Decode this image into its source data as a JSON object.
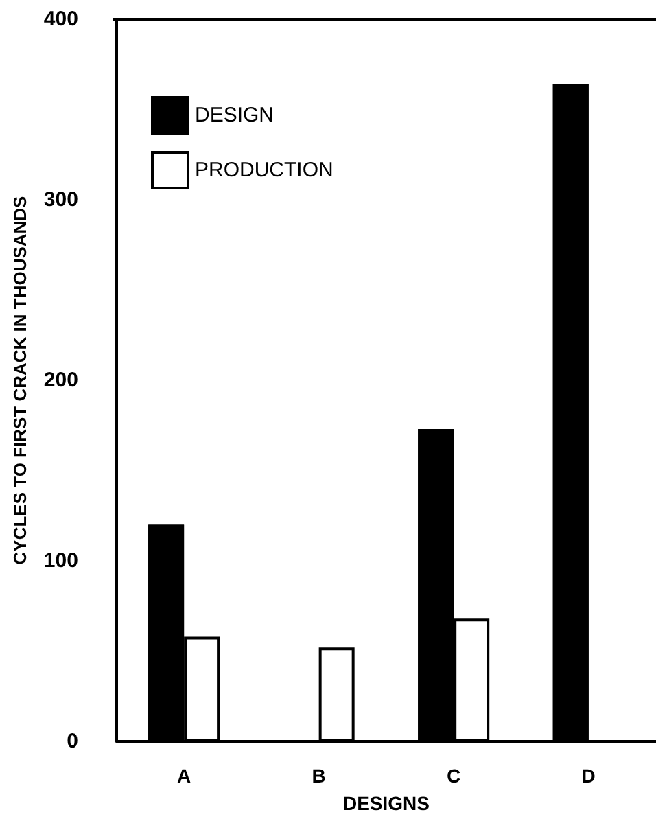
{
  "chart_data": {
    "type": "bar",
    "xlabel": "DESIGNS",
    "ylabel": "CYCLES TO FIRST CRACK IN THOUSANDS",
    "categories": [
      "A",
      "B",
      "C",
      "D"
    ],
    "series": [
      {
        "name": "DESIGN",
        "color": "#000000",
        "values": [
          120,
          null,
          173,
          364
        ]
      },
      {
        "name": "PRODUCTION",
        "color": "#ffffff",
        "values": [
          58,
          52,
          68,
          null
        ]
      }
    ],
    "ylim": [
      0,
      400
    ],
    "yticks": [
      0,
      100,
      200,
      300,
      400
    ],
    "grid": false,
    "legend": "top left"
  }
}
